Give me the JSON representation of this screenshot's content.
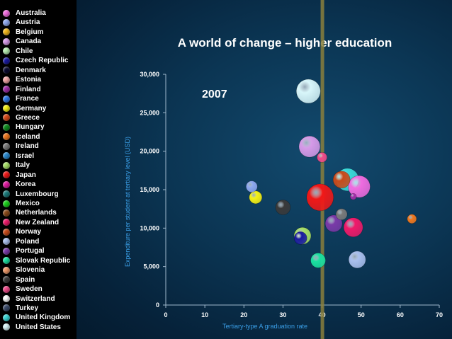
{
  "chart_data": {
    "type": "scatter",
    "title": "A world of change – higher education",
    "annotation": "2007",
    "xlabel": "Tertiary-type A graduation rate",
    "ylabel": "Expenditure per student at tertiary level (USD)",
    "xlim": [
      0,
      70
    ],
    "ylim": [
      0,
      30000
    ],
    "xticks": [
      0,
      10,
      20,
      30,
      40,
      50,
      60,
      70
    ],
    "yticks": [
      0,
      5000,
      10000,
      15000,
      20000,
      25000,
      30000
    ],
    "ytick_labels": [
      "0",
      "5,000",
      "10,000",
      "15,000",
      "20,000",
      "25,000",
      "30,000"
    ],
    "reference_line_x": 40,
    "grid": false,
    "legend": [
      {
        "name": "Australia",
        "color": "#f06ce0"
      },
      {
        "name": "Austria",
        "color": "#8ea8ee"
      },
      {
        "name": "Belgium",
        "color": "#f2b81c"
      },
      {
        "name": "Canada",
        "color": "#d69ae8"
      },
      {
        "name": "Chile",
        "color": "#b8f0b0"
      },
      {
        "name": "Czech Republic",
        "color": "#1a1aa0"
      },
      {
        "name": "Denmark",
        "color": "#0a0a30"
      },
      {
        "name": "Estonia",
        "color": "#f4a8a8"
      },
      {
        "name": "Finland",
        "color": "#a02ea8"
      },
      {
        "name": "France",
        "color": "#2e7ae8"
      },
      {
        "name": "Germany",
        "color": "#f6f214"
      },
      {
        "name": "Greece",
        "color": "#d84a1a"
      },
      {
        "name": "Hungary",
        "color": "#0e8a1e"
      },
      {
        "name": "Iceland",
        "color": "#f0781e"
      },
      {
        "name": "Ireland",
        "color": "#7a7a7a"
      },
      {
        "name": "Israel",
        "color": "#2a8ad0"
      },
      {
        "name": "Italy",
        "color": "#a8e068"
      },
      {
        "name": "Japan",
        "color": "#f01818"
      },
      {
        "name": "Korea",
        "color": "#e01aa0"
      },
      {
        "name": "Luxembourg",
        "color": "#1a7a7a"
      },
      {
        "name": "Mexico",
        "color": "#1ad01a"
      },
      {
        "name": "Netherlands",
        "color": "#8a4a1a"
      },
      {
        "name": "New Zealand",
        "color": "#f01a6a"
      },
      {
        "name": "Norway",
        "color": "#c84a1a"
      },
      {
        "name": "Poland",
        "color": "#aac0ee"
      },
      {
        "name": "Portugal",
        "color": "#7a3aa8"
      },
      {
        "name": "Slovak Republic",
        "color": "#1ae0a0"
      },
      {
        "name": "Slovenia",
        "color": "#f09a6a"
      },
      {
        "name": "Spain",
        "color": "#3a3a3a"
      },
      {
        "name": "Sweden",
        "color": "#f04a8a"
      },
      {
        "name": "Switzerland",
        "color": "#ffffff"
      },
      {
        "name": "Turkey",
        "color": "#3a4a6a"
      },
      {
        "name": "United Kingdom",
        "color": "#3ad8d8"
      },
      {
        "name": "United States",
        "color": "#d8f6fa"
      }
    ],
    "points": [
      {
        "name": "United States",
        "x": 36.5,
        "y": 27800,
        "size": 34,
        "color": "#d8f6fa"
      },
      {
        "name": "Canada",
        "x": 36.8,
        "y": 20600,
        "size": 30,
        "color": "#d69ae8"
      },
      {
        "name": "Sweden",
        "x": 40,
        "y": 19200,
        "size": 14,
        "color": "#f04a8a"
      },
      {
        "name": "Australia",
        "x": 49.5,
        "y": 15400,
        "size": 31,
        "color": "#f06ce0"
      },
      {
        "name": "Norway",
        "x": 45,
        "y": 16300,
        "size": 24,
        "color": "#c84a1a"
      },
      {
        "name": "United Kingdom",
        "x": 46.5,
        "y": 16300,
        "size": 32,
        "color": "#3ad8d8"
      },
      {
        "name": "Finland",
        "x": 48,
        "y": 14100,
        "size": 9,
        "color": "#a02ea8"
      },
      {
        "name": "Japan",
        "x": 39.5,
        "y": 14000,
        "size": 38,
        "color": "#f01818"
      },
      {
        "name": "Austria",
        "x": 22,
        "y": 15400,
        "size": 16,
        "color": "#8ea8ee"
      },
      {
        "name": "Germany",
        "x": 23,
        "y": 14000,
        "size": 18,
        "color": "#f6f214"
      },
      {
        "name": "Spain",
        "x": 30,
        "y": 12700,
        "size": 21,
        "color": "#3a3a3a"
      },
      {
        "name": "Ireland",
        "x": 45,
        "y": 11800,
        "size": 16,
        "color": "#7a7a7a"
      },
      {
        "name": "Portugal",
        "x": 43,
        "y": 10600,
        "size": 24,
        "color": "#7a3aa8"
      },
      {
        "name": "New Zealand",
        "x": 48,
        "y": 10100,
        "size": 27,
        "color": "#f01a6a"
      },
      {
        "name": "Iceland",
        "x": 63,
        "y": 11200,
        "size": 13,
        "color": "#f0781e"
      },
      {
        "name": "Czech Republic",
        "x": 34.5,
        "y": 8700,
        "size": 18,
        "color": "#1a1aa0"
      },
      {
        "name": "Italy",
        "x": 35,
        "y": 9000,
        "size": 24,
        "color": "#a8e068"
      },
      {
        "name": "Slovak Republic",
        "x": 39,
        "y": 5800,
        "size": 21,
        "color": "#1ae0a0"
      },
      {
        "name": "Poland",
        "x": 49,
        "y": 5900,
        "size": 24,
        "color": "#aac0ee"
      }
    ]
  }
}
